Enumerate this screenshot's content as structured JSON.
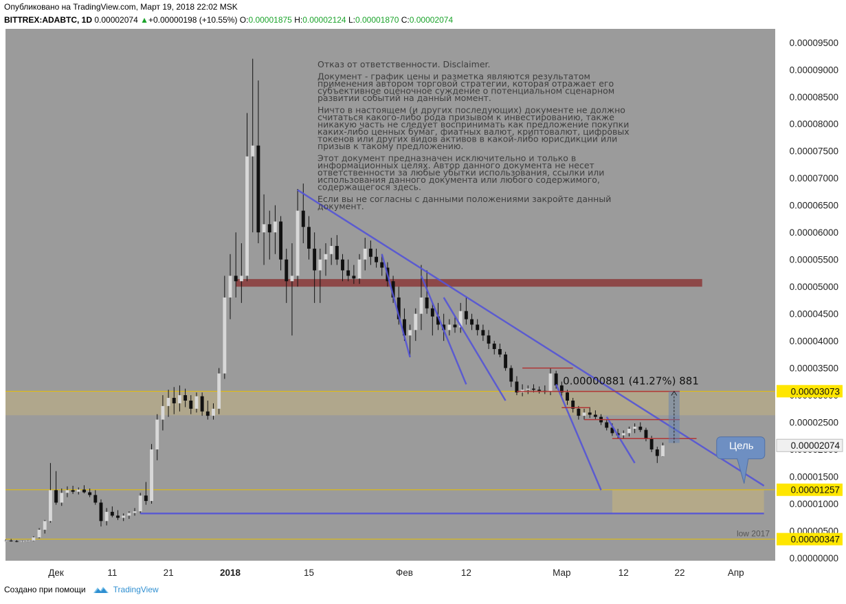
{
  "header": {
    "published": "Опубликовано на TradingView.com, Март 19, 2018 22:02 MSK",
    "symbol": "BITTREX:ADABTC, 1D",
    "last": "0.00002074",
    "change": "+0.00000198 (+10.55%)",
    "o_label": "O:",
    "o": "0.00001875",
    "h_label": "H:",
    "h": "0.00002124",
    "l_label": "L:",
    "l": "0.00001870",
    "c_label": "C:",
    "c": "0.00002074"
  },
  "footer": {
    "made_with": "Создано при помощи",
    "brand": "TradingView"
  },
  "disclaimer": [
    "Отказ от ответственности. Disclaimer.",
    "Документ - график цены и разметка являются результатом применения автором торговой стратегии, которая отражает его субъективное оценочное суждение о потенциальном сценарном развитии событий на данный момент.",
    "Ничто в настоящем (и других последующих) документе не должно считаться какого-либо рода призывом к инвестированию, также никакую часть не следует воспринимать как предложение покупки каких-либо ценных бумаг, фиатных валют, криптовалют, цифровых токенов или других видов активов в какой-либо юрисдикции или призыв к такому предложению.",
    "Этот документ предназначен исключительно и только в информационных целях. Автор данного документа не несет ответственности за любые убытки использования, ссылки или использования данного документа или любого содержимого, содержащегося здесь.",
    "Если вы не согласны с данными положениями закройте данный документ."
  ],
  "colors": {
    "background": "#9b9b9b",
    "up_candle": "#d8d8d8",
    "down_candle": "#111111",
    "trendline": "#5555d6",
    "resistance": "#8b3a3a",
    "zone": "#c9b57a",
    "label_bg": "#ffe600",
    "current_label_bg": "#f0f0f0",
    "target_callout": "#6e8fc2"
  },
  "chart_data": {
    "type": "candlestick",
    "x_ticks": [
      {
        "label": "Дек",
        "date": "2017-12-01"
      },
      {
        "label": "11",
        "date": "2017-12-11"
      },
      {
        "label": "21",
        "date": "2017-12-21"
      },
      {
        "label": "2018",
        "date": "2018-01-01"
      },
      {
        "label": "15",
        "date": "2018-01-15"
      },
      {
        "label": "Фев",
        "date": "2018-02-01"
      },
      {
        "label": "12",
        "date": "2018-02-12"
      },
      {
        "label": "Мар",
        "date": "2018-03-01"
      },
      {
        "label": "12",
        "date": "2018-03-12"
      },
      {
        "label": "22",
        "date": "2018-03-22"
      },
      {
        "label": "Апр",
        "date": "2018-04-01"
      }
    ],
    "y_ticks": [
      "0.00009500",
      "0.00009000",
      "0.00008500",
      "0.00008000",
      "0.00007500",
      "0.00007000",
      "0.00006500",
      "0.00006000",
      "0.00005500",
      "0.00005000",
      "0.00004500",
      "0.00004000",
      "0.00003500",
      "0.00003000",
      "0.00002500",
      "0.00002000",
      "0.00001500",
      "0.00001000",
      "0.00000500",
      "0.00000000"
    ],
    "ylim": [
      0.0,
      9.7e-05
    ],
    "xlim": [
      "2017-11-22",
      "2018-04-08"
    ],
    "candles": [
      {
        "date": "2017-11-22",
        "o": 3.1e-06,
        "h": 3.4e-06,
        "l": 3e-06,
        "c": 3.2e-06
      },
      {
        "date": "2017-11-23",
        "o": 3.2e-06,
        "h": 3.5e-06,
        "l": 3e-06,
        "c": 3.1e-06
      },
      {
        "date": "2017-11-24",
        "o": 3.1e-06,
        "h": 3.3e-06,
        "l": 2.9e-06,
        "c": 3e-06
      },
      {
        "date": "2017-11-25",
        "o": 3e-06,
        "h": 3.2e-06,
        "l": 2.9e-06,
        "c": 3.1e-06
      },
      {
        "date": "2017-11-26",
        "o": 3.1e-06,
        "h": 3.3e-06,
        "l": 3e-06,
        "c": 3.2e-06
      },
      {
        "date": "2017-11-27",
        "o": 3.2e-06,
        "h": 4e-06,
        "l": 3.1e-06,
        "c": 3.8e-06
      },
      {
        "date": "2017-11-28",
        "o": 3.8e-06,
        "h": 5.5e-06,
        "l": 3.6e-06,
        "c": 5.2e-06
      },
      {
        "date": "2017-11-29",
        "o": 5.2e-06,
        "h": 7e-06,
        "l": 4.5e-06,
        "c": 6.8e-06
      },
      {
        "date": "2017-11-30",
        "o": 6.8e-06,
        "h": 1.75e-05,
        "l": 6.5e-06,
        "c": 1.25e-05
      },
      {
        "date": "2017-12-01",
        "o": 1.25e-05,
        "h": 1.6e-05,
        "l": 9.8e-06,
        "c": 1.02e-05
      },
      {
        "date": "2017-12-02",
        "o": 1.02e-05,
        "h": 1.28e-05,
        "l": 9.6e-06,
        "c": 1.2e-05
      },
      {
        "date": "2017-12-03",
        "o": 1.2e-05,
        "h": 1.32e-05,
        "l": 1.12e-05,
        "c": 1.25e-05
      },
      {
        "date": "2017-12-04",
        "o": 1.25e-05,
        "h": 1.33e-05,
        "l": 1.18e-05,
        "c": 1.22e-05
      },
      {
        "date": "2017-12-05",
        "o": 1.22e-05,
        "h": 1.3e-05,
        "l": 1.17e-05,
        "c": 1.26e-05
      },
      {
        "date": "2017-12-06",
        "o": 1.26e-05,
        "h": 1.34e-05,
        "l": 1.19e-05,
        "c": 1.21e-05
      },
      {
        "date": "2017-12-07",
        "o": 1.21e-05,
        "h": 1.28e-05,
        "l": 1.12e-05,
        "c": 1.16e-05
      },
      {
        "date": "2017-12-08",
        "o": 1.16e-05,
        "h": 1.25e-05,
        "l": 9.8e-06,
        "c": 1.02e-05
      },
      {
        "date": "2017-12-09",
        "o": 1.02e-05,
        "h": 1.08e-05,
        "l": 5.8e-06,
        "c": 6.8e-06
      },
      {
        "date": "2017-12-10",
        "o": 6.8e-06,
        "h": 9.2e-06,
        "l": 6e-06,
        "c": 8.5e-06
      },
      {
        "date": "2017-12-11",
        "o": 8.5e-06,
        "h": 9.5e-06,
        "l": 7.5e-06,
        "c": 7.8e-06
      },
      {
        "date": "2017-12-12",
        "o": 7.8e-06,
        "h": 8.8e-06,
        "l": 7e-06,
        "c": 7.4e-06
      },
      {
        "date": "2017-12-13",
        "o": 7.4e-06,
        "h": 8.2e-06,
        "l": 6.8e-06,
        "c": 7.8e-06
      },
      {
        "date": "2017-12-14",
        "o": 7.8e-06,
        "h": 8.6e-06,
        "l": 7.2e-06,
        "c": 8.3e-06
      },
      {
        "date": "2017-12-15",
        "o": 8.3e-06,
        "h": 9.2e-06,
        "l": 7.8e-06,
        "c": 8.6e-06
      },
      {
        "date": "2017-12-16",
        "o": 8.6e-06,
        "h": 1.2e-05,
        "l": 8.2e-06,
        "c": 1.15e-05
      },
      {
        "date": "2017-12-17",
        "o": 1.15e-05,
        "h": 1.4e-05,
        "l": 9.8e-06,
        "c": 1.05e-05
      },
      {
        "date": "2017-12-18",
        "o": 1.05e-05,
        "h": 2.1e-05,
        "l": 1e-05,
        "c": 2e-05
      },
      {
        "date": "2017-12-19",
        "o": 2e-05,
        "h": 2.65e-05,
        "l": 1.8e-05,
        "c": 2.55e-05
      },
      {
        "date": "2017-12-20",
        "o": 2.55e-05,
        "h": 3e-05,
        "l": 2.35e-05,
        "c": 2.8e-05
      },
      {
        "date": "2017-12-21",
        "o": 2.8e-05,
        "h": 3.1e-05,
        "l": 2.6e-05,
        "c": 2.95e-05
      },
      {
        "date": "2017-12-22",
        "o": 2.95e-05,
        "h": 3.15e-05,
        "l": 2.65e-05,
        "c": 2.85e-05
      },
      {
        "date": "2017-12-23",
        "o": 2.85e-05,
        "h": 3.18e-05,
        "l": 2.7e-05,
        "c": 3e-05
      },
      {
        "date": "2017-12-24",
        "o": 3e-05,
        "h": 3.12e-05,
        "l": 2.78e-05,
        "c": 2.9e-05
      },
      {
        "date": "2017-12-25",
        "o": 2.9e-05,
        "h": 3e-05,
        "l": 2.65e-05,
        "c": 2.75e-05
      },
      {
        "date": "2017-12-26",
        "o": 2.75e-05,
        "h": 3.05e-05,
        "l": 2.68e-05,
        "c": 2.98e-05
      },
      {
        "date": "2017-12-27",
        "o": 2.98e-05,
        "h": 3.05e-05,
        "l": 2.62e-05,
        "c": 2.7e-05
      },
      {
        "date": "2017-12-28",
        "o": 2.7e-05,
        "h": 2.9e-05,
        "l": 2.55e-05,
        "c": 2.62e-05
      },
      {
        "date": "2017-12-29",
        "o": 2.62e-05,
        "h": 2.85e-05,
        "l": 2.55e-05,
        "c": 2.75e-05
      },
      {
        "date": "2017-12-30",
        "o": 2.75e-05,
        "h": 3.5e-05,
        "l": 2.65e-05,
        "c": 3.4e-05
      },
      {
        "date": "2017-12-31",
        "o": 3.4e-05,
        "h": 5.2e-05,
        "l": 3.3e-05,
        "c": 4.8e-05
      },
      {
        "date": "2018-01-01",
        "o": 4.8e-05,
        "h": 5.6e-05,
        "l": 4.4e-05,
        "c": 5.2e-05
      },
      {
        "date": "2018-01-02",
        "o": 5.2e-05,
        "h": 6e-05,
        "l": 4.8e-05,
        "c": 5.1e-05
      },
      {
        "date": "2018-01-03",
        "o": 5.1e-05,
        "h": 5.8e-05,
        "l": 4.7e-05,
        "c": 5.2e-05
      },
      {
        "date": "2018-01-04",
        "o": 5.2e-05,
        "h": 8.2e-05,
        "l": 5.1e-05,
        "c": 7.4e-05
      },
      {
        "date": "2018-01-05",
        "o": 7.4e-05,
        "h": 9.2e-05,
        "l": 6e-05,
        "c": 7.6e-05
      },
      {
        "date": "2018-01-06",
        "o": 7.6e-05,
        "h": 8.8e-05,
        "l": 5.8e-05,
        "c": 6e-05
      },
      {
        "date": "2018-01-07",
        "o": 6e-05,
        "h": 6.7e-05,
        "l": 5.4e-05,
        "c": 6.15e-05
      },
      {
        "date": "2018-01-08",
        "o": 6.15e-05,
        "h": 6.4e-05,
        "l": 5.5e-05,
        "c": 6e-05
      },
      {
        "date": "2018-01-09",
        "o": 6e-05,
        "h": 6.5e-05,
        "l": 5.6e-05,
        "c": 6.2e-05
      },
      {
        "date": "2018-01-10",
        "o": 6.2e-05,
        "h": 6.3e-05,
        "l": 5.3e-05,
        "c": 5.5e-05
      },
      {
        "date": "2018-01-11",
        "o": 5.5e-05,
        "h": 5.7e-05,
        "l": 4.7e-05,
        "c": 5.1e-05
      },
      {
        "date": "2018-01-12",
        "o": 5.1e-05,
        "h": 5.8e-05,
        "l": 4.1e-05,
        "c": 5.2e-05
      },
      {
        "date": "2018-01-13",
        "o": 5.2e-05,
        "h": 6.8e-05,
        "l": 5e-05,
        "c": 6.4e-05
      },
      {
        "date": "2018-01-14",
        "o": 6.4e-05,
        "h": 6.9e-05,
        "l": 5.8e-05,
        "c": 6.1e-05
      },
      {
        "date": "2018-01-15",
        "o": 6.1e-05,
        "h": 6.3e-05,
        "l": 5.5e-05,
        "c": 5.7e-05
      },
      {
        "date": "2018-01-16",
        "o": 5.7e-05,
        "h": 6e-05,
        "l": 4.7e-05,
        "c": 5.3e-05
      },
      {
        "date": "2018-01-17",
        "o": 5.3e-05,
        "h": 5.7e-05,
        "l": 4.7e-05,
        "c": 5.5e-05
      },
      {
        "date": "2018-01-18",
        "o": 5.5e-05,
        "h": 5.8e-05,
        "l": 5.2e-05,
        "c": 5.6e-05
      },
      {
        "date": "2018-01-19",
        "o": 5.6e-05,
        "h": 5.9e-05,
        "l": 5.4e-05,
        "c": 5.75e-05
      },
      {
        "date": "2018-01-20",
        "o": 5.75e-05,
        "h": 5.95e-05,
        "l": 5.4e-05,
        "c": 5.5e-05
      },
      {
        "date": "2018-01-21",
        "o": 5.5e-05,
        "h": 5.6e-05,
        "l": 5.1e-05,
        "c": 5.3e-05
      },
      {
        "date": "2018-01-22",
        "o": 5.3e-05,
        "h": 5.5e-05,
        "l": 5.1e-05,
        "c": 5.2e-05
      },
      {
        "date": "2018-01-23",
        "o": 5.2e-05,
        "h": 5.4e-05,
        "l": 5.05e-05,
        "c": 5.15e-05
      },
      {
        "date": "2018-01-24",
        "o": 5.15e-05,
        "h": 5.6e-05,
        "l": 5.05e-05,
        "c": 5.5e-05
      },
      {
        "date": "2018-01-25",
        "o": 5.5e-05,
        "h": 5.9e-05,
        "l": 5.3e-05,
        "c": 5.7e-05
      },
      {
        "date": "2018-01-26",
        "o": 5.7e-05,
        "h": 5.85e-05,
        "l": 5.4e-05,
        "c": 5.55e-05
      },
      {
        "date": "2018-01-27",
        "o": 5.55e-05,
        "h": 5.7e-05,
        "l": 5.35e-05,
        "c": 5.45e-05
      },
      {
        "date": "2018-01-28",
        "o": 5.45e-05,
        "h": 5.6e-05,
        "l": 5.2e-05,
        "c": 5.35e-05
      },
      {
        "date": "2018-01-29",
        "o": 5.35e-05,
        "h": 5.45e-05,
        "l": 5e-05,
        "c": 5.1e-05
      },
      {
        "date": "2018-01-30",
        "o": 5.1e-05,
        "h": 5.2e-05,
        "l": 4.7e-05,
        "c": 4.8e-05
      },
      {
        "date": "2018-01-31",
        "o": 4.8e-05,
        "h": 5e-05,
        "l": 4.3e-05,
        "c": 4.4e-05
      },
      {
        "date": "2018-02-01",
        "o": 4.4e-05,
        "h": 4.6e-05,
        "l": 4e-05,
        "c": 4.1e-05
      },
      {
        "date": "2018-02-02",
        "o": 4.1e-05,
        "h": 4.3e-05,
        "l": 3.7e-05,
        "c": 4.2e-05
      },
      {
        "date": "2018-02-03",
        "o": 4.2e-05,
        "h": 4.6e-05,
        "l": 4e-05,
        "c": 4.5e-05
      },
      {
        "date": "2018-02-04",
        "o": 4.5e-05,
        "h": 5.4e-05,
        "l": 4.2e-05,
        "c": 4.8e-05
      },
      {
        "date": "2018-02-05",
        "o": 4.8e-05,
        "h": 5.3e-05,
        "l": 4.5e-05,
        "c": 4.6e-05
      },
      {
        "date": "2018-02-06",
        "o": 4.6e-05,
        "h": 4.7e-05,
        "l": 4.1e-05,
        "c": 4.45e-05
      },
      {
        "date": "2018-02-07",
        "o": 4.45e-05,
        "h": 4.7e-05,
        "l": 4.2e-05,
        "c": 4.3e-05
      },
      {
        "date": "2018-02-08",
        "o": 4.3e-05,
        "h": 4.5e-05,
        "l": 4e-05,
        "c": 4.2e-05
      },
      {
        "date": "2018-02-09",
        "o": 4.2e-05,
        "h": 4.4e-05,
        "l": 4.1e-05,
        "c": 4.3e-05
      },
      {
        "date": "2018-02-10",
        "o": 4.3e-05,
        "h": 4.45e-05,
        "l": 4.15e-05,
        "c": 4.25e-05
      },
      {
        "date": "2018-02-11",
        "o": 4.25e-05,
        "h": 4.7e-05,
        "l": 4.15e-05,
        "c": 4.55e-05
      },
      {
        "date": "2018-02-12",
        "o": 4.55e-05,
        "h": 4.8e-05,
        "l": 4.3e-05,
        "c": 4.4e-05
      },
      {
        "date": "2018-02-13",
        "o": 4.4e-05,
        "h": 4.5e-05,
        "l": 4.2e-05,
        "c": 4.3e-05
      },
      {
        "date": "2018-02-14",
        "o": 4.3e-05,
        "h": 4.4e-05,
        "l": 4.1e-05,
        "c": 4.2e-05
      },
      {
        "date": "2018-02-15",
        "o": 4.2e-05,
        "h": 4.3e-05,
        "l": 4e-05,
        "c": 4.1e-05
      },
      {
        "date": "2018-02-16",
        "o": 4.1e-05,
        "h": 4.2e-05,
        "l": 3.85e-05,
        "c": 3.95e-05
      },
      {
        "date": "2018-02-17",
        "o": 3.95e-05,
        "h": 4e-05,
        "l": 3.75e-05,
        "c": 3.85e-05
      },
      {
        "date": "2018-02-18",
        "o": 3.85e-05,
        "h": 3.95e-05,
        "l": 3.7e-05,
        "c": 3.75e-05
      },
      {
        "date": "2018-02-19",
        "o": 3.75e-05,
        "h": 3.8e-05,
        "l": 3.45e-05,
        "c": 3.5e-05
      },
      {
        "date": "2018-02-20",
        "o": 3.5e-05,
        "h": 3.55e-05,
        "l": 3.15e-05,
        "c": 3.25e-05
      },
      {
        "date": "2018-02-21",
        "o": 3.25e-05,
        "h": 3.35e-05,
        "l": 3e-05,
        "c": 3.05e-05
      },
      {
        "date": "2018-02-22",
        "o": 3.05e-05,
        "h": 3.2e-05,
        "l": 2.98e-05,
        "c": 3.1e-05
      },
      {
        "date": "2018-02-23",
        "o": 3.1e-05,
        "h": 3.18e-05,
        "l": 3.02e-05,
        "c": 3.12e-05
      },
      {
        "date": "2018-02-24",
        "o": 3.12e-05,
        "h": 3.2e-05,
        "l": 3.05e-05,
        "c": 3.1e-05
      },
      {
        "date": "2018-02-25",
        "o": 3.1e-05,
        "h": 3.16e-05,
        "l": 3.03e-05,
        "c": 3.08e-05
      },
      {
        "date": "2018-02-26",
        "o": 3.08e-05,
        "h": 3.18e-05,
        "l": 3.02e-05,
        "c": 3.06e-05
      },
      {
        "date": "2018-02-27",
        "o": 3.06e-05,
        "h": 3.5e-05,
        "l": 3e-05,
        "c": 3.4e-05
      },
      {
        "date": "2018-02-28",
        "o": 3.4e-05,
        "h": 3.45e-05,
        "l": 3.12e-05,
        "c": 3.18e-05
      },
      {
        "date": "2018-03-01",
        "o": 3.18e-05,
        "h": 3.25e-05,
        "l": 2.98e-05,
        "c": 3.05e-05
      },
      {
        "date": "2018-03-02",
        "o": 3.05e-05,
        "h": 3.1e-05,
        "l": 2.82e-05,
        "c": 2.9e-05
      },
      {
        "date": "2018-03-03",
        "o": 2.9e-05,
        "h": 2.95e-05,
        "l": 2.68e-05,
        "c": 2.75e-05
      },
      {
        "date": "2018-03-04",
        "o": 2.75e-05,
        "h": 2.8e-05,
        "l": 2.55e-05,
        "c": 2.62e-05
      },
      {
        "date": "2018-03-05",
        "o": 2.62e-05,
        "h": 2.75e-05,
        "l": 2.55e-05,
        "c": 2.68e-05
      },
      {
        "date": "2018-03-06",
        "o": 2.68e-05,
        "h": 2.78e-05,
        "l": 2.58e-05,
        "c": 2.64e-05
      },
      {
        "date": "2018-03-07",
        "o": 2.64e-05,
        "h": 2.72e-05,
        "l": 2.55e-05,
        "c": 2.6e-05
      },
      {
        "date": "2018-03-08",
        "o": 2.6e-05,
        "h": 2.65e-05,
        "l": 2.45e-05,
        "c": 2.5e-05
      },
      {
        "date": "2018-03-09",
        "o": 2.5e-05,
        "h": 2.55e-05,
        "l": 2.35e-05,
        "c": 2.4e-05
      },
      {
        "date": "2018-03-10",
        "o": 2.4e-05,
        "h": 2.48e-05,
        "l": 2.25e-05,
        "c": 2.3e-05
      },
      {
        "date": "2018-03-11",
        "o": 2.3e-05,
        "h": 2.38e-05,
        "l": 2.2e-05,
        "c": 2.26e-05
      },
      {
        "date": "2018-03-12",
        "o": 2.26e-05,
        "h": 2.35e-05,
        "l": 2.2e-05,
        "c": 2.3e-05
      },
      {
        "date": "2018-03-13",
        "o": 2.3e-05,
        "h": 2.42e-05,
        "l": 2.24e-05,
        "c": 2.38e-05
      },
      {
        "date": "2018-03-14",
        "o": 2.38e-05,
        "h": 2.48e-05,
        "l": 2.3e-05,
        "c": 2.42e-05
      },
      {
        "date": "2018-03-15",
        "o": 2.42e-05,
        "h": 2.5e-05,
        "l": 2.32e-05,
        "c": 2.36e-05
      },
      {
        "date": "2018-03-16",
        "o": 2.36e-05,
        "h": 2.4e-05,
        "l": 2.15e-05,
        "c": 2.2e-05
      },
      {
        "date": "2018-03-17",
        "o": 2.2e-05,
        "h": 2.25e-05,
        "l": 1.95e-05,
        "c": 2e-05
      },
      {
        "date": "2018-03-18",
        "o": 2e-05,
        "h": 2.05e-05,
        "l": 1.75e-05,
        "c": 1.88e-05
      },
      {
        "date": "2018-03-19",
        "o": 1.875e-05,
        "h": 2.124e-05,
        "l": 1.87e-05,
        "c": 2.074e-05
      }
    ],
    "horizontal_levels": [
      {
        "price": 3.073e-05,
        "label": "0.00003073",
        "style": "yellow"
      },
      {
        "price": 1.257e-05,
        "label": "0.00001257",
        "style": "yellow"
      },
      {
        "price": 3.47e-06,
        "label": "0.00000347",
        "style": "yellow"
      },
      {
        "price": 2.074e-05,
        "label": "0.00002074",
        "style": "current"
      }
    ],
    "low_label": "low 2017",
    "measure_label": "0.00000881 (41.27%) 881",
    "target_label": "Цель"
  }
}
